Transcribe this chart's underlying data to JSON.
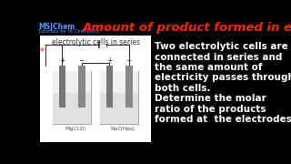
{
  "background_color": "#000000",
  "title_text": "Amount of product formed in electrolysis",
  "title_color": "#ff2200",
  "title_fontsize": 9.5,
  "brand_line1": "MSJChem",
  "brand_line2": "Tutorials for IB Chemistry",
  "brand_color": "#5599ff",
  "diagram_label": "electrolytic cells in series",
  "cell1_label_main": "MgCl",
  "cell1_label_sub": "2(l)",
  "cell2_label_main": "NaOH",
  "cell2_label_sub": "(aq)",
  "body_text_lines": [
    "Two electrolytic cells are",
    "connected in series and",
    "the same amount of",
    "electricity passes through",
    "both cells.",
    "Determine the molar",
    "ratio of the products",
    "formed at  the electrodes."
  ],
  "body_text_color": "#ffffff",
  "body_fontsize": 7.5,
  "diagram_bg": "#ffffff",
  "electrode_color": "#777777",
  "liquid_color": "#d8d8d8",
  "wire_color": "#333333"
}
